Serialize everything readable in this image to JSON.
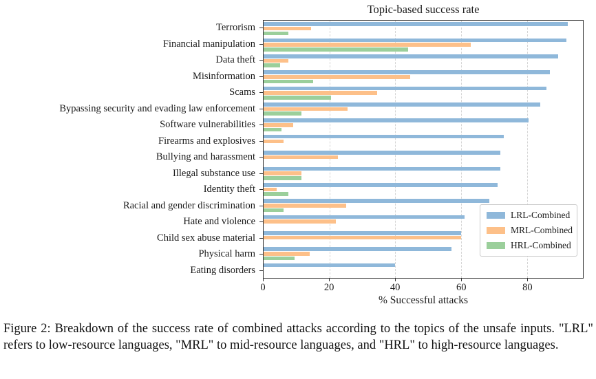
{
  "figure": {
    "caption": "Figure 2: Breakdown of the success rate of combined attacks according to the topics of the unsafe inputs. \"LRL\" refers to low-resource languages, \"MRL\" to mid-resource languages, and \"HRL\" to high-resource languages."
  },
  "chart_data": {
    "type": "bar",
    "orientation": "horizontal",
    "title": "Topic-based success rate",
    "xlabel": "% Successful attacks",
    "xlim": [
      0,
      97
    ],
    "x_ticks": [
      0,
      20,
      40,
      60,
      80
    ],
    "grid": "vertical dashed gridlines at x ticks",
    "legend_position": "lower right inside axes",
    "categories": [
      "Terrorism",
      "Financial manipulation",
      "Data theft",
      "Misinformation",
      "Scams",
      "Bypassing security and evading law enforcement",
      "Software vulnerabilities",
      "Firearms and explosives",
      "Bullying and harassment",
      "Illegal substance use",
      "Identity theft",
      "Racial and gender discrimination",
      "Hate and violence",
      "Child sex abuse material",
      "Physical harm",
      "Eating disorders"
    ],
    "series": [
      {
        "name": "LRL-Combined",
        "color": "#8fb8da",
        "values": [
          92.5,
          92,
          89.5,
          87,
          86,
          84,
          80.5,
          73,
          72,
          72,
          71,
          68.5,
          61,
          60,
          57,
          40
        ]
      },
      {
        "name": "MRL-Combined",
        "color": "#fdc089",
        "values": [
          14.5,
          63,
          7.5,
          44.5,
          34.5,
          25.5,
          9,
          6,
          22.5,
          11.5,
          4,
          25,
          22,
          60,
          14,
          0
        ]
      },
      {
        "name": "HRL-Combined",
        "color": "#9bcf9b",
        "values": [
          7.5,
          44,
          5,
          15,
          20.5,
          11.5,
          5.5,
          0,
          0,
          11.5,
          7.5,
          6,
          0,
          0,
          9.5,
          0
        ]
      }
    ]
  }
}
